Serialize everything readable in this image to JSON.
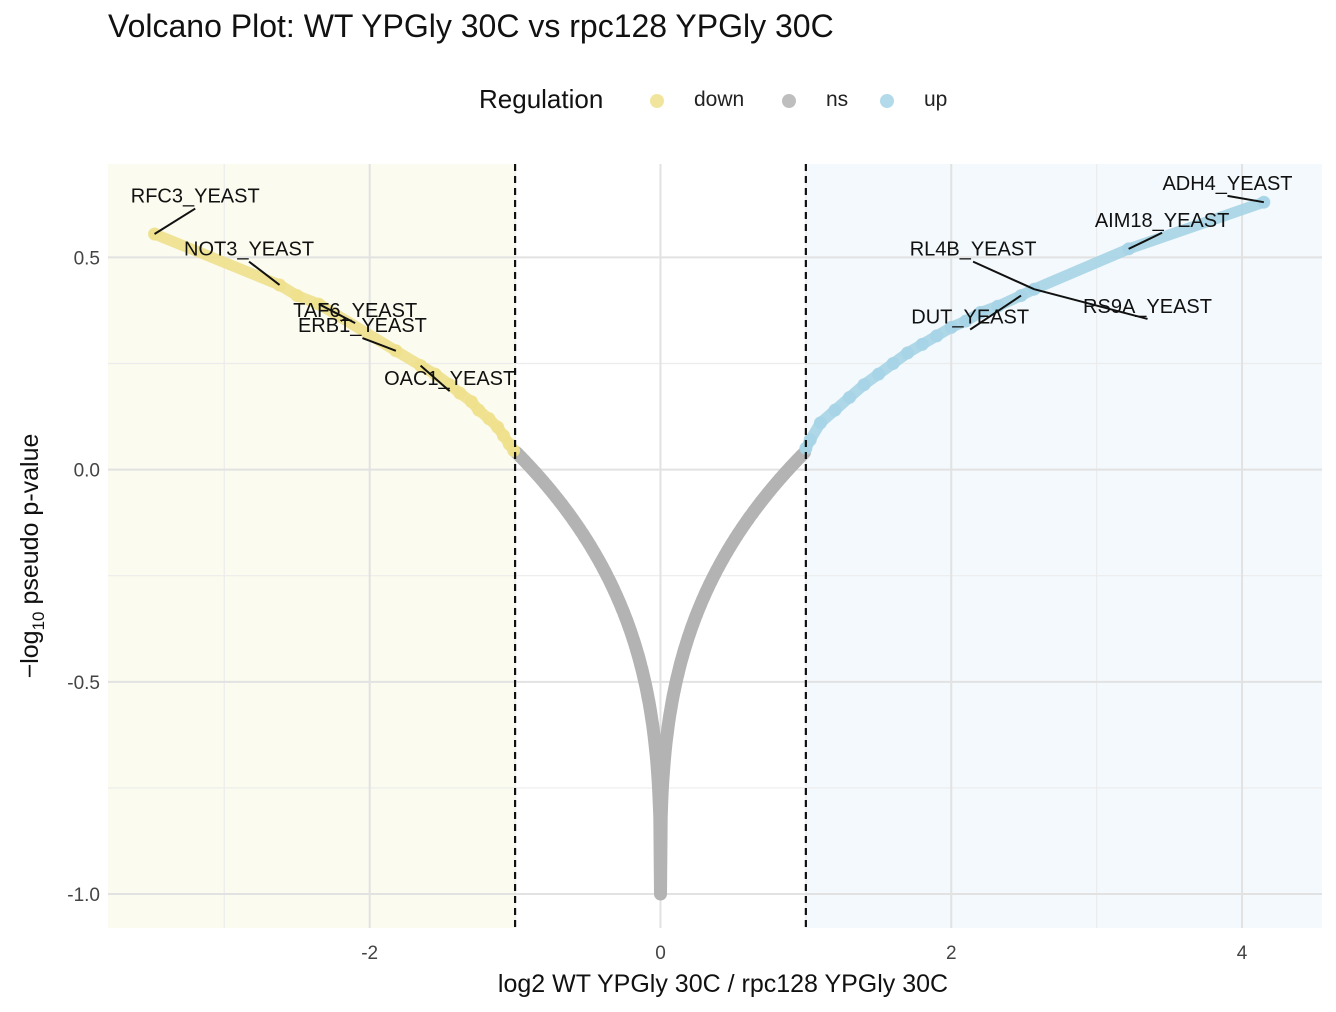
{
  "chart_data": {
    "type": "scatter",
    "title": "Volcano Plot: WT YPGly 30C vs rpc128 YPGly 30C",
    "xlabel": "log2 WT YPGly 30C / rpc128 YPGly 30C",
    "ylabel_prefix": "−log",
    "ylabel_sub": "10",
    "ylabel_suffix": " pseudo p-value",
    "xlim": [
      -3.8,
      4.55
    ],
    "ylim": [
      -1.08,
      0.72
    ],
    "x_ticks": [
      -2,
      0,
      2,
      4
    ],
    "x_tick_labels": [
      "-2",
      "0",
      "2",
      "4"
    ],
    "y_ticks": [
      -1.0,
      -0.5,
      0.0,
      0.5
    ],
    "y_tick_labels": [
      "-1.0",
      "-0.5",
      "0.0",
      "0.5"
    ],
    "grid": true,
    "thresholds_x": [
      -1,
      1
    ],
    "legend": {
      "title": "Regulation",
      "position": "top",
      "entries": [
        {
          "label": "down",
          "color": "#eee08c"
        },
        {
          "label": "ns",
          "color": "#b3b3b3"
        },
        {
          "label": "up",
          "color": "#a6d4e6"
        }
      ]
    },
    "region_colors": {
      "down": "#fbfbef",
      "up": "#f3f9fc"
    },
    "series": [
      {
        "name": "down",
        "color": "#eee08c",
        "points": [
          [
            -3.48,
            0.555
          ],
          [
            -2.62,
            0.435
          ],
          [
            -2.5,
            0.41
          ],
          [
            -2.35,
            0.39
          ],
          [
            -1.82,
            0.28
          ],
          [
            -1.65,
            0.245
          ],
          [
            -1.55,
            0.225
          ],
          [
            -1.45,
            0.2
          ],
          [
            -1.38,
            0.18
          ],
          [
            -1.3,
            0.16
          ],
          [
            -1.25,
            0.14
          ],
          [
            -1.18,
            0.12
          ],
          [
            -1.12,
            0.1
          ],
          [
            -1.08,
            0.08
          ],
          [
            -1.04,
            0.06
          ],
          [
            -1.01,
            0.045
          ]
        ]
      },
      {
        "name": "up",
        "color": "#a6d4e6",
        "points": [
          [
            4.15,
            0.63
          ],
          [
            3.22,
            0.52
          ],
          [
            2.57,
            0.425
          ],
          [
            2.48,
            0.41
          ],
          [
            2.32,
            0.385
          ],
          [
            2.2,
            0.37
          ],
          [
            2.1,
            0.35
          ],
          [
            2.0,
            0.335
          ],
          [
            1.9,
            0.315
          ],
          [
            1.8,
            0.295
          ],
          [
            1.7,
            0.275
          ],
          [
            1.6,
            0.25
          ],
          [
            1.5,
            0.225
          ],
          [
            1.4,
            0.2
          ],
          [
            1.3,
            0.17
          ],
          [
            1.2,
            0.14
          ],
          [
            1.1,
            0.11
          ],
          [
            1.03,
            0.07
          ],
          [
            1.0,
            0.05
          ]
        ]
      }
    ],
    "ns_curve": {
      "name": "ns",
      "color": "#b3b3b3",
      "x_range": [
        -0.99,
        0.99
      ],
      "y_at_edge": 0.04,
      "y_min": -1.0
    },
    "annotations": [
      {
        "label": "RFC3_YEAST",
        "x": -3.48,
        "y": 0.555,
        "lx": -3.2,
        "ly": 0.615
      },
      {
        "label": "NOT3_YEAST",
        "x": -2.62,
        "y": 0.435,
        "lx": -2.83,
        "ly": 0.49
      },
      {
        "label": "TAF6_YEAST",
        "x": -2.35,
        "y": 0.39,
        "lx": -2.1,
        "ly": 0.345
      },
      {
        "label": "ERB1_YEAST",
        "x": -1.82,
        "y": 0.28,
        "lx": -2.05,
        "ly": 0.31
      },
      {
        "label": "OAC1_YEAST",
        "x": -1.65,
        "y": 0.245,
        "lx": -1.45,
        "ly": 0.185
      },
      {
        "label": "ADH4_YEAST",
        "x": 4.15,
        "y": 0.63,
        "lx": 3.9,
        "ly": 0.645
      },
      {
        "label": "AIM18_YEAST",
        "x": 3.22,
        "y": 0.52,
        "lx": 3.45,
        "ly": 0.558
      },
      {
        "label": "RL4B_YEAST",
        "x": 2.57,
        "y": 0.425,
        "lx": 2.15,
        "ly": 0.49
      },
      {
        "label": "RS9A_YEAST",
        "x": 2.57,
        "y": 0.425,
        "lx": 3.35,
        "ly": 0.355
      },
      {
        "label": "DUT_YEAST",
        "x": 2.48,
        "y": 0.41,
        "lx": 2.13,
        "ly": 0.33
      }
    ]
  }
}
